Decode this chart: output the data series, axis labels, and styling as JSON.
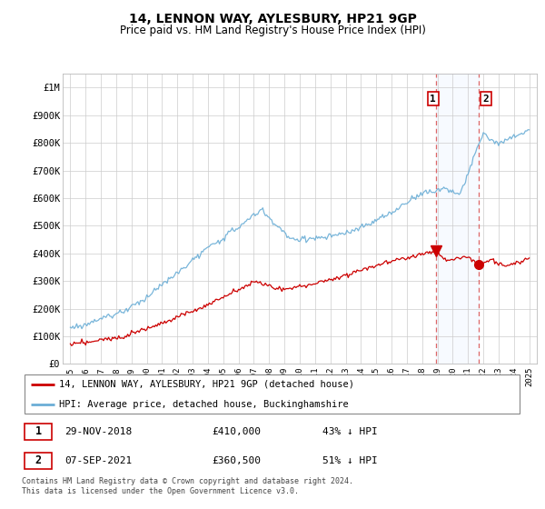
{
  "title": "14, LENNON WAY, AYLESBURY, HP21 9GP",
  "subtitle": "Price paid vs. HM Land Registry's House Price Index (HPI)",
  "legend_line1": "14, LENNON WAY, AYLESBURY, HP21 9GP (detached house)",
  "legend_line2": "HPI: Average price, detached house, Buckinghamshire",
  "footnote": "Contains HM Land Registry data © Crown copyright and database right 2024.\nThis data is licensed under the Open Government Licence v3.0.",
  "ann1": {
    "num": "1",
    "date": "29-NOV-2018",
    "price": "£410,000",
    "pct": "43% ↓ HPI"
  },
  "ann2": {
    "num": "2",
    "date": "07-SEP-2021",
    "price": "£360,500",
    "pct": "51% ↓ HPI"
  },
  "sale1_x": 2018.91,
  "sale1_y": 410000,
  "sale2_x": 2021.68,
  "sale2_y": 360500,
  "hpi_color": "#6baed6",
  "sale_color": "#cc0000",
  "highlight_color": "#ddeeff",
  "ylim": [
    0,
    1050000
  ],
  "xlim": [
    1994.5,
    2025.5
  ],
  "yticks": [
    0,
    100000,
    200000,
    300000,
    400000,
    500000,
    600000,
    700000,
    800000,
    900000,
    1000000
  ],
  "ytick_labels": [
    "£0",
    "£100K",
    "£200K",
    "£300K",
    "£400K",
    "£500K",
    "£600K",
    "£700K",
    "£800K",
    "£900K",
    "£1M"
  ]
}
